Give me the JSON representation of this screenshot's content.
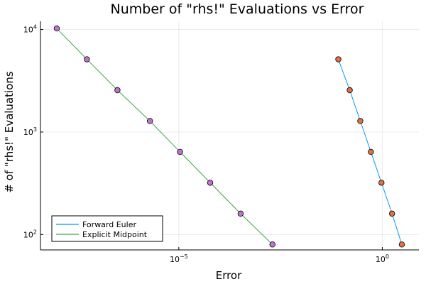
{
  "chart_data": {
    "type": "line",
    "title": "Number of \"rhs!\" Evaluations vs Error",
    "xlabel": "Error",
    "ylabel": "# of \"rhs!\" Evaluations",
    "xscale": "log",
    "yscale": "log",
    "xlim_log10": [
      -8.4,
      0.9
    ],
    "ylim_log10": [
      1.85,
      4.08
    ],
    "x_ticks": [
      {
        "base": "10",
        "exp": "−5",
        "log10": -5
      },
      {
        "base": "10",
        "exp": "0",
        "log10": 0
      }
    ],
    "y_ticks": [
      {
        "base": "10",
        "exp": "2",
        "log10": 2
      },
      {
        "base": "10",
        "exp": "3",
        "log10": 3
      },
      {
        "base": "10",
        "exp": "4",
        "log10": 4
      }
    ],
    "grid": true,
    "legend_position": "bottom-left",
    "series": [
      {
        "name": "Forward Euler",
        "line_color": "#009AF9",
        "marker_color": "#E26F46",
        "x": [
          0.0832,
          0.1585,
          0.2884,
          0.5248,
          0.955,
          1.7378,
          3.02
        ],
        "y": [
          5120,
          2560,
          1280,
          640,
          320,
          160,
          80
        ]
      },
      {
        "name": "Explicit Midpoint",
        "line_color": "#3DA44D",
        "marker_color": "#C271D2",
        "x": [
          1e-08,
          5.5e-08,
          3.1e-07,
          1.95e-06,
          1.07e-05,
          5.9e-05,
          0.00033,
          0.002
        ],
        "y": [
          10240,
          5120,
          2560,
          1280,
          640,
          320,
          160,
          80
        ]
      }
    ]
  }
}
